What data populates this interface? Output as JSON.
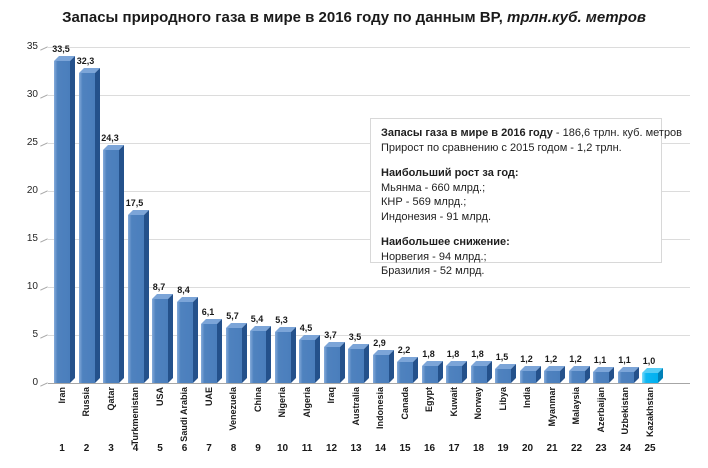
{
  "chart_data": {
    "type": "bar",
    "title": "Запасы природного газа в мире в 2016 году по данным BP, трлн.куб. метров",
    "title_main": "Запасы природного газа в мире в 2016 году по данным BP,",
    "title_italic": " трлн.куб. метров",
    "categories": [
      "Iran",
      "Russia",
      "Qatar",
      "Turkmenistan",
      "USA",
      "Saudi Arabia",
      "UAE",
      "Venezuela",
      "China",
      "Nigeria",
      "Algeria",
      "Iraq",
      "Australia",
      "Indonesia",
      "Canada",
      "Egypt",
      "Kuwait",
      "Norway",
      "Libya",
      "India",
      "Myanmar",
      "Malaysia",
      "Azerbaijan",
      "Uzbekistan",
      "Kazakhstan"
    ],
    "values": [
      33.5,
      32.3,
      24.3,
      17.5,
      8.7,
      8.4,
      6.1,
      5.7,
      5.4,
      5.3,
      4.5,
      3.7,
      3.5,
      2.9,
      2.2,
      1.8,
      1.8,
      1.8,
      1.5,
      1.2,
      1.2,
      1.2,
      1.1,
      1.1,
      1.0
    ],
    "value_labels": [
      "33,5",
      "32,3",
      "24,3",
      "17,5",
      "8,7",
      "8,4",
      "6,1",
      "5,7",
      "5,4",
      "5,3",
      "4,5",
      "3,7",
      "3,5",
      "2,9",
      "2,2",
      "1,8",
      "1,8",
      "1,8",
      "1,5",
      "1,2",
      "1,2",
      "1,2",
      "1,1",
      "1,1",
      "1,0"
    ],
    "ranks": [
      "1",
      "2",
      "3",
      "4",
      "5",
      "6",
      "7",
      "8",
      "9",
      "10",
      "11",
      "12",
      "13",
      "14",
      "15",
      "16",
      "17",
      "18",
      "19",
      "20",
      "21",
      "22",
      "23",
      "24",
      "25"
    ],
    "y_ticks": [
      0,
      5,
      10,
      15,
      20,
      25,
      30,
      35
    ],
    "ylim": [
      0,
      35
    ],
    "xlabel": "",
    "ylabel": "",
    "grid": true,
    "legend": false,
    "highlight_index": 24,
    "bar_color": "#4a7ebc",
    "bar_side_color": "#24518b",
    "bar_top_color": "#7ca5d8",
    "highlight_color": "#00b0f0",
    "highlight_side_color": "#0081b8",
    "highlight_top_color": "#55cdf6"
  },
  "infobox": {
    "line1_bold": "Запасы газа в мире в 2016 году",
    "line1_rest": " - 186,6 трлн. куб. метров",
    "line2": "Прирост по сравнению с 2015 годом - 1,2 трлн.",
    "growth_header": "Наибольший рост за год:",
    "growth_items": [
      "Мьянма - 660 млрд.;",
      "КНР - 569 млрд.;",
      "Индонезия - 91 млрд."
    ],
    "decline_header": "Наибольшее снижение:",
    "decline_items": [
      "Норвегия - 94 млрд.;",
      "Бразилия - 52 млрд."
    ]
  }
}
